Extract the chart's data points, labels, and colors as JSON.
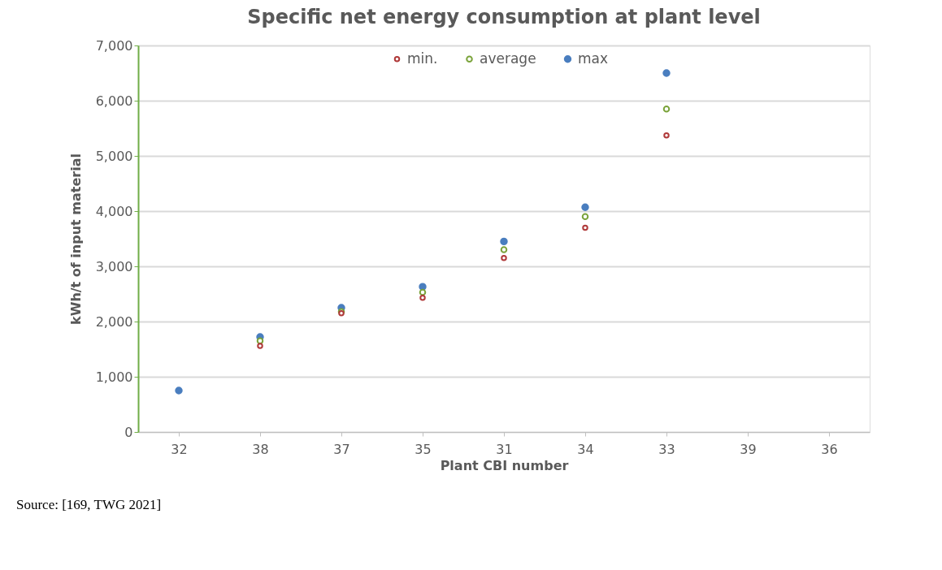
{
  "chart_data": {
    "type": "scatter",
    "title": "Specific net energy consumption at plant level",
    "xlabel": "Plant CBI number",
    "ylabel": "kWh/t of input material",
    "categories": [
      "32",
      "38",
      "37",
      "35",
      "31",
      "34",
      "33",
      "39",
      "36"
    ],
    "series": [
      {
        "name": "min.",
        "color": "#b03a3a",
        "values": [
          null,
          1560,
          2150,
          2430,
          3150,
          3700,
          5370,
          null,
          null
        ]
      },
      {
        "name": "average",
        "color": "#7aa33a",
        "values": [
          null,
          1650,
          2180,
          2530,
          3300,
          3900,
          5850,
          null,
          null
        ]
      },
      {
        "name": "max",
        "color": "#4a7ebf",
        "values": [
          750,
          1720,
          2250,
          2630,
          3450,
          4070,
          6500,
          null,
          null
        ]
      }
    ],
    "ylim": [
      0,
      7000
    ],
    "yticks": [
      {
        "value": 0,
        "label": "0"
      },
      {
        "value": 1000,
        "label": "1,000"
      },
      {
        "value": 2000,
        "label": "2,000"
      },
      {
        "value": 3000,
        "label": "3,000"
      },
      {
        "value": 4000,
        "label": "4,000"
      },
      {
        "value": 5000,
        "label": "5,000"
      },
      {
        "value": 6000,
        "label": "6,000"
      },
      {
        "value": 7000,
        "label": "7,000"
      }
    ],
    "grid": "y",
    "legend": "top",
    "marker": "circle",
    "annotations": [
      "Source: [169, TWG 2021]"
    ]
  }
}
